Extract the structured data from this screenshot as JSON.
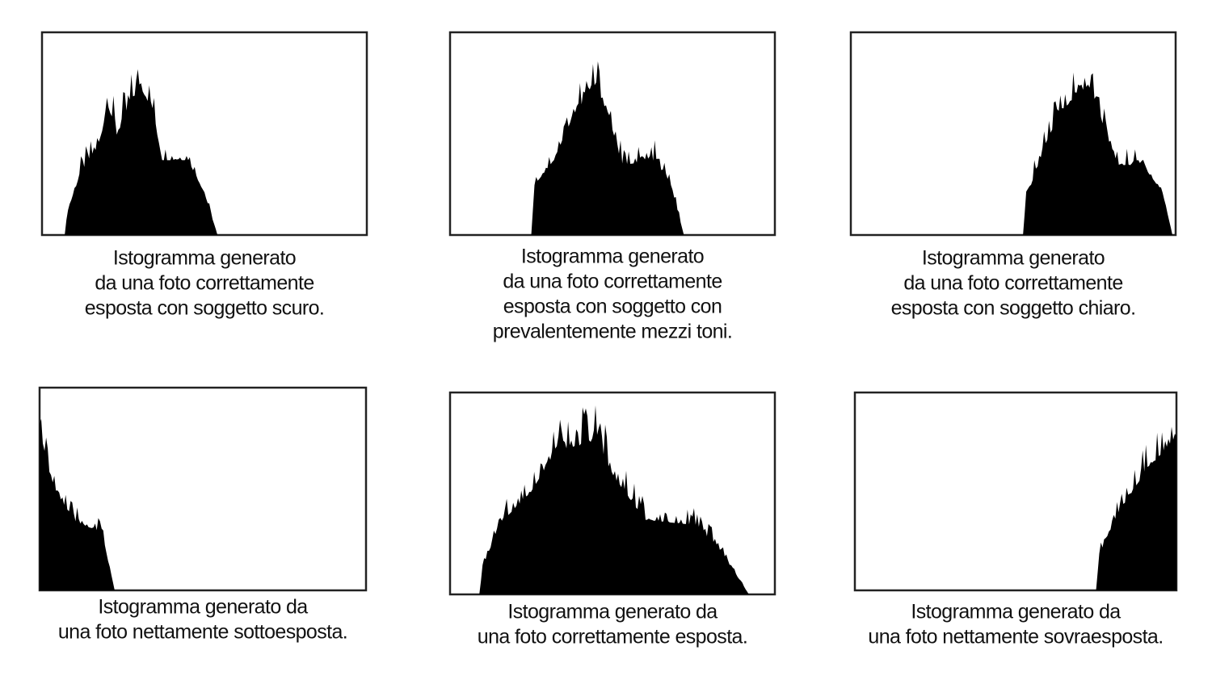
{
  "panels": [
    {
      "caption": [
        "Istogramma generato",
        "da una foto correttamente",
        "esposta con soggetto scuro."
      ]
    },
    {
      "caption": [
        "Istogramma generato",
        "da una foto correttamente",
        "esposta con soggetto con",
        "prevalentemente mezzi toni."
      ]
    },
    {
      "caption": [
        "Istogramma generato",
        "da una foto correttamente",
        "esposta con soggetto chiaro."
      ]
    },
    {
      "caption": [
        "Istogramma generato da",
        "una foto nettamente sottoesposta."
      ]
    },
    {
      "caption": [
        "Istogramma generato da",
        "una foto correttamente esposta."
      ]
    },
    {
      "caption": [
        "Istogramma generato da",
        "una foto nettamente sovraesposta."
      ]
    }
  ]
}
